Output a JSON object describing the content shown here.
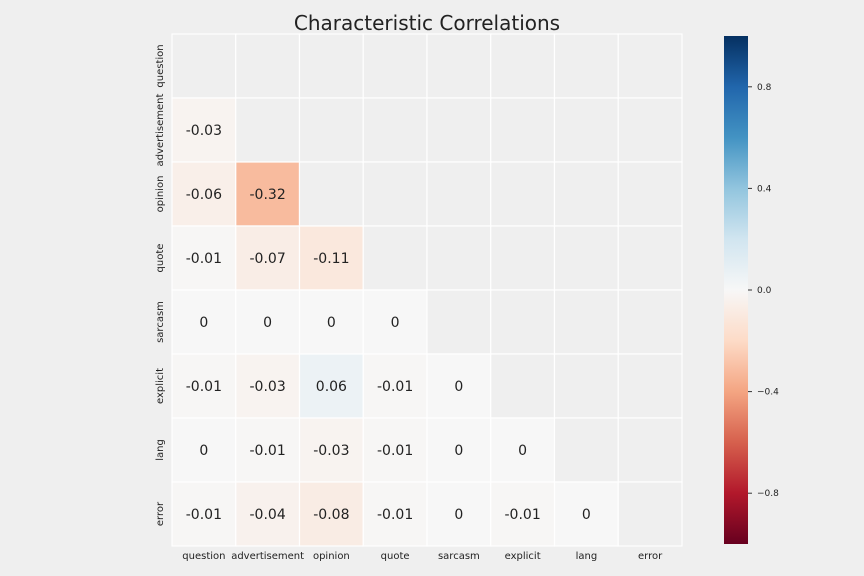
{
  "chart_data": {
    "type": "heatmap",
    "title": "Characteristic Correlations",
    "row_labels": [
      "question",
      "advertisement",
      "opinion",
      "quote",
      "sarcasm",
      "explicit",
      "lang",
      "error"
    ],
    "col_labels": [
      "question",
      "advertisement",
      "opinion",
      "quote",
      "sarcasm",
      "explicit",
      "lang",
      "error"
    ],
    "mask": "upper-triangle-including-diagonal",
    "cells": [
      [
        null,
        null,
        null,
        null,
        null,
        null,
        null,
        null
      ],
      [
        -0.03,
        null,
        null,
        null,
        null,
        null,
        null,
        null
      ],
      [
        -0.06,
        -0.32,
        null,
        null,
        null,
        null,
        null,
        null
      ],
      [
        -0.01,
        -0.07,
        -0.11,
        null,
        null,
        null,
        null,
        null
      ],
      [
        0,
        0,
        0,
        0,
        null,
        null,
        null,
        null
      ],
      [
        -0.01,
        -0.03,
        0.06,
        -0.01,
        0,
        null,
        null,
        null
      ],
      [
        0,
        -0.01,
        -0.03,
        -0.01,
        0,
        0,
        null,
        null
      ],
      [
        -0.01,
        -0.04,
        -0.08,
        -0.01,
        0,
        -0.01,
        0,
        null
      ]
    ],
    "colorbar": {
      "min": -1.0,
      "max": 1.0,
      "colormap": "RdBu",
      "tick_values": [
        0.8,
        0.4,
        0.0,
        -0.4,
        -0.8
      ],
      "tick_labels": [
        "0.8",
        "0.4",
        "0.0",
        "−0.4",
        "−0.8"
      ]
    },
    "grid": true
  },
  "colors": {
    "background": "#efefef",
    "cell_border": "#ffffff",
    "text": "#222222"
  }
}
